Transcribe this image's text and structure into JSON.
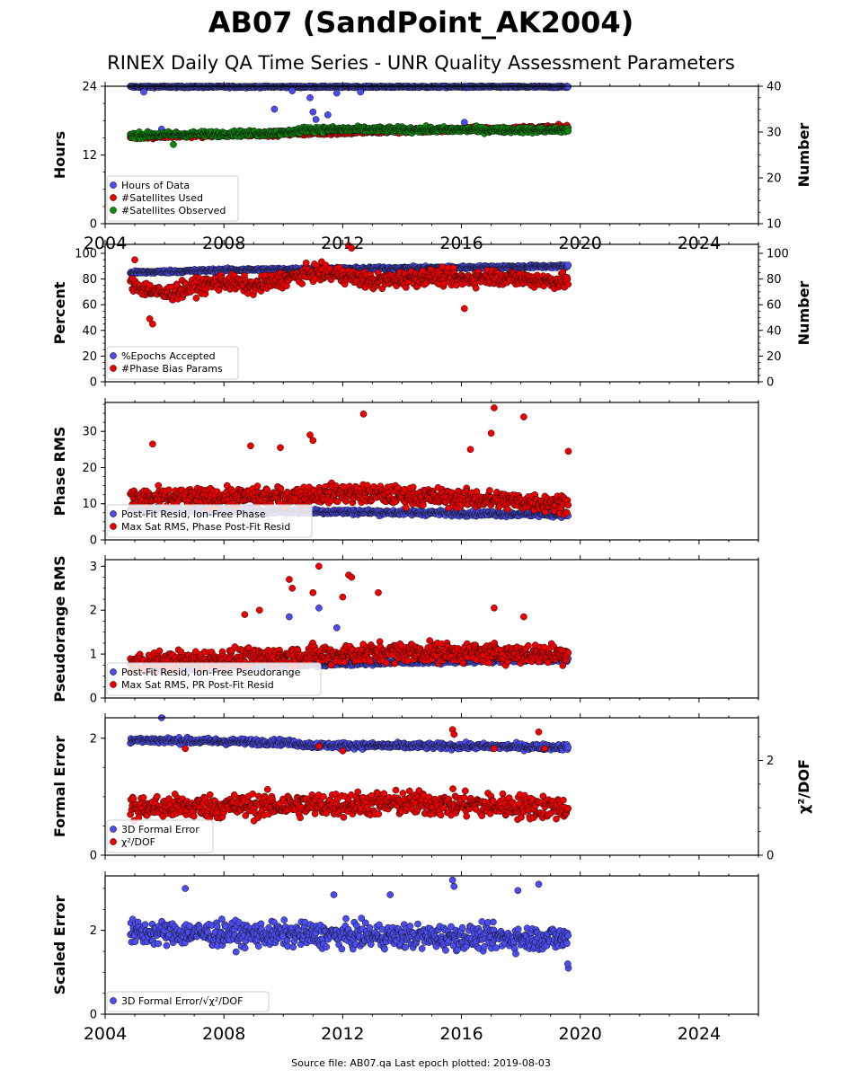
{
  "figure": {
    "title": "AB07 (SandPoint_AK2004)",
    "subtitle": "RINEX Daily QA Time Series - UNR Quality Assessment Parameters",
    "footer": "Source file: AB07.qa Last epoch plotted: 2019-08-03"
  },
  "colors": {
    "blue": "#4b4bef",
    "red": "#ee0000",
    "green": "#0a8a0a",
    "edge": "#111111"
  },
  "chart_data": [
    {
      "type": "scatter",
      "ylabel": "Hours",
      "y2label": "Number",
      "xlim": [
        2004,
        2026
      ],
      "ylim": [
        0,
        24
      ],
      "y2lim": [
        10,
        40
      ],
      "x_ticks": [
        "2004",
        "2008",
        "2012",
        "2016",
        "2020",
        "2024"
      ],
      "y_ticks": [
        "0",
        "12",
        "24"
      ],
      "y2_ticks": [
        "10",
        "20",
        "30",
        "40"
      ],
      "legend": "lower-left",
      "series": [
        {
          "name": "Hours of Data",
          "axis": "left",
          "color": "blue",
          "x_range": [
            2004.85,
            2019.59
          ],
          "base": [
            [
              2004.85,
              23.9
            ],
            [
              2019.59,
              23.9
            ]
          ],
          "noise": 0.15,
          "outliers": [
            [
              2005.3,
              23.0
            ],
            [
              2005.9,
              16.5
            ],
            [
              2009.7,
              20.0
            ],
            [
              2010.3,
              23.2
            ],
            [
              2010.9,
              22.0
            ],
            [
              2011.0,
              19.5
            ],
            [
              2011.1,
              18.2
            ],
            [
              2011.5,
              19.0
            ],
            [
              2011.8,
              22.8
            ],
            [
              2012.6,
              23.0
            ],
            [
              2016.1,
              17.7
            ]
          ]
        },
        {
          "name": "#Satellites Used",
          "axis": "right",
          "color": "red",
          "x_range": [
            2004.85,
            2019.59
          ],
          "base": [
            [
              2004.85,
              29
            ],
            [
              2019.59,
              31
            ]
          ],
          "noise": 0.5,
          "outliers": [
            [
              2009.6,
              30.1
            ]
          ]
        },
        {
          "name": "#Satellites Observed",
          "axis": "right",
          "color": "green",
          "x_range": [
            2004.85,
            2019.59
          ],
          "base": [
            [
              2004.85,
              29.3
            ],
            [
              2006.5,
              29.5
            ],
            [
              2010.0,
              29.8
            ],
            [
              2010.8,
              30.6
            ],
            [
              2016.0,
              30.5
            ],
            [
              2019.59,
              30.4
            ]
          ],
          "noise": 0.6,
          "outliers": [
            [
              2006.3,
              27.3
            ]
          ]
        }
      ]
    },
    {
      "type": "scatter",
      "ylabel": "Percent",
      "y2label": "Number",
      "xlim": [
        2004,
        2026
      ],
      "ylim": [
        0,
        107
      ],
      "y2lim": [
        0,
        107
      ],
      "x_ticks": [],
      "y_ticks": [
        "0",
        "20",
        "40",
        "60",
        "80",
        "100"
      ],
      "y2_ticks": [
        "0",
        "20",
        "40",
        "60",
        "80",
        "100"
      ],
      "legend": "lower-left",
      "series": [
        {
          "name": "%Epochs Accepted",
          "axis": "left",
          "color": "blue",
          "x_range": [
            2004.85,
            2019.59
          ],
          "base": [
            [
              2004.85,
              85
            ],
            [
              2008,
              87
            ],
            [
              2012,
              88
            ],
            [
              2016,
              89
            ],
            [
              2019.59,
              90
            ]
          ],
          "noise": 1.2,
          "outliers": []
        },
        {
          "name": "#Phase Bias Params",
          "axis": "right",
          "color": "red",
          "x_range": [
            2004.85,
            2019.59
          ],
          "base": [
            [
              2004.85,
              76
            ],
            [
              2006,
              68
            ],
            [
              2007,
              74
            ],
            [
              2008,
              78
            ],
            [
              2009,
              74
            ],
            [
              2010,
              80
            ],
            [
              2011,
              85
            ],
            [
              2012,
              83
            ],
            [
              2013,
              78
            ],
            [
              2014,
              80
            ],
            [
              2015,
              82
            ],
            [
              2016,
              80
            ],
            [
              2017,
              82
            ],
            [
              2018,
              80
            ],
            [
              2019.59,
              78
            ]
          ],
          "noise": 6,
          "outliers": [
            [
              2005.5,
              49
            ],
            [
              2005.6,
              45
            ],
            [
              2016.1,
              57
            ],
            [
              2012.2,
              106
            ],
            [
              2012.3,
              104
            ],
            [
              2005.0,
              95
            ]
          ]
        }
      ]
    },
    {
      "type": "scatter",
      "ylabel": "Phase RMS",
      "xlim": [
        2004,
        2026
      ],
      "ylim": [
        0,
        38
      ],
      "x_ticks": [],
      "y_ticks": [
        "0",
        "10",
        "20",
        "30"
      ],
      "legend": "lower-left",
      "series": [
        {
          "name": "Post-Fit Resid, Ion-Free Phase",
          "axis": "left",
          "color": "blue",
          "x_range": [
            2004.85,
            2019.59
          ],
          "base": [
            [
              2004.85,
              8.5
            ],
            [
              2019.59,
              7.0
            ]
          ],
          "noise": 0.7,
          "outliers": []
        },
        {
          "name": "Max Sat RMS, Phase Post-Fit Resid",
          "axis": "left",
          "color": "red",
          "x_range": [
            2004.85,
            2019.59
          ],
          "base": [
            [
              2004.85,
              11.5
            ],
            [
              2010,
              12
            ],
            [
              2012,
              13
            ],
            [
              2016,
              11.5
            ],
            [
              2019.59,
              10
            ]
          ],
          "noise": 2.5,
          "outliers": [
            [
              2012.7,
              34.8
            ],
            [
              2017.1,
              36.5
            ],
            [
              2018.1,
              34
            ],
            [
              2010.9,
              29
            ],
            [
              2011.0,
              27.5
            ],
            [
              2005.6,
              26.5
            ],
            [
              2008.9,
              26
            ],
            [
              2009.9,
              25.5
            ],
            [
              2016.3,
              25
            ],
            [
              2017.0,
              29.5
            ],
            [
              2019.6,
              24.5
            ]
          ]
        }
      ]
    },
    {
      "type": "scatter",
      "ylabel": "Pseudorange RMS",
      "xlim": [
        2004,
        2026
      ],
      "ylim": [
        0,
        3.15
      ],
      "x_ticks": [],
      "y_ticks": [
        "0",
        "1",
        "2",
        "3"
      ],
      "legend": "lower-left",
      "series": [
        {
          "name": "Post-Fit Resid, Ion-Free Pseudorange",
          "axis": "left",
          "color": "blue",
          "x_range": [
            2004.85,
            2019.59
          ],
          "base": [
            [
              2004.85,
              0.65
            ],
            [
              2010,
              0.75
            ],
            [
              2014,
              0.82
            ],
            [
              2019.59,
              0.88
            ]
          ],
          "noise": 0.05,
          "outliers": [
            [
              2010.2,
              1.85
            ],
            [
              2011.2,
              2.05
            ],
            [
              2011.8,
              1.6
            ]
          ]
        },
        {
          "name": "Max Sat RMS, PR Post-Fit Resid",
          "axis": "left",
          "color": "red",
          "x_range": [
            2004.85,
            2019.59
          ],
          "base": [
            [
              2004.85,
              0.8
            ],
            [
              2010,
              0.95
            ],
            [
              2014,
              1.05
            ],
            [
              2019.59,
              1.0
            ]
          ],
          "noise": 0.22,
          "outliers": [
            [
              2011.2,
              3.0
            ],
            [
              2012.2,
              2.8
            ],
            [
              2012.3,
              2.75
            ],
            [
              2010.2,
              2.7
            ],
            [
              2010.3,
              2.5
            ],
            [
              2011.0,
              2.4
            ],
            [
              2012.0,
              2.3
            ],
            [
              2013.2,
              2.4
            ],
            [
              2009.2,
              2.0
            ],
            [
              2008.7,
              1.9
            ],
            [
              2018.1,
              1.85
            ],
            [
              2017.1,
              2.05
            ]
          ]
        }
      ]
    },
    {
      "type": "scatter",
      "ylabel": "Formal Error",
      "y2label": "χ²/DOF",
      "xlim": [
        2004,
        2026
      ],
      "ylim": [
        0,
        2.35
      ],
      "y2lim": [
        0,
        2.9
      ],
      "x_ticks": [],
      "y_ticks": [
        "0",
        "2"
      ],
      "y2_ticks": [
        "0",
        "2"
      ],
      "legend": "lower-left",
      "series": [
        {
          "name": "3D Formal Error",
          "axis": "left",
          "color": "blue",
          "x_range": [
            2004.85,
            2019.59
          ],
          "base": [
            [
              2004.85,
              1.97
            ],
            [
              2010,
              1.93
            ],
            [
              2011,
              1.88
            ],
            [
              2019.59,
              1.85
            ]
          ],
          "noise": 0.05,
          "outliers": [
            [
              2005.9,
              2.35
            ]
          ]
        },
        {
          "name": "χ²/DOF",
          "axis": "right",
          "color": "red",
          "x_range": [
            2004.85,
            2019.59
          ],
          "base": [
            [
              2004.85,
              1.0
            ],
            [
              2010,
              1.05
            ],
            [
              2014,
              1.1
            ],
            [
              2019.59,
              1.0
            ]
          ],
          "noise": 0.25,
          "outliers": [
            [
              2015.7,
              2.65
            ],
            [
              2015.75,
              2.55
            ],
            [
              2018.6,
              2.6
            ],
            [
              2006.7,
              2.25
            ],
            [
              2012.0,
              2.2
            ],
            [
              2011.2,
              2.3
            ],
            [
              2017.1,
              2.25
            ],
            [
              2018.8,
              2.25
            ]
          ]
        }
      ]
    },
    {
      "type": "scatter",
      "ylabel": "Scaled Error",
      "xlim": [
        2004,
        2026
      ],
      "ylim": [
        0,
        3.3
      ],
      "x_ticks": [
        "2004",
        "2008",
        "2012",
        "2016",
        "2020",
        "2024"
      ],
      "y_ticks": [
        "0",
        "2"
      ],
      "legend": "lower-left",
      "series": [
        {
          "name": "3D Formal Error/√χ²/DOF",
          "axis": "left",
          "color": "blue",
          "x_range": [
            2004.85,
            2019.59
          ],
          "base": [
            [
              2004.85,
              1.95
            ],
            [
              2019.59,
              1.8
            ]
          ],
          "noise": 0.28,
          "outliers": [
            [
              2015.7,
              3.2
            ],
            [
              2015.75,
              3.05
            ],
            [
              2018.6,
              3.1
            ],
            [
              2006.7,
              3.0
            ],
            [
              2011.7,
              2.85
            ],
            [
              2013.6,
              2.85
            ],
            [
              2017.9,
              2.95
            ],
            [
              2019.6,
              1.1
            ],
            [
              2019.58,
              1.2
            ]
          ]
        }
      ]
    }
  ]
}
